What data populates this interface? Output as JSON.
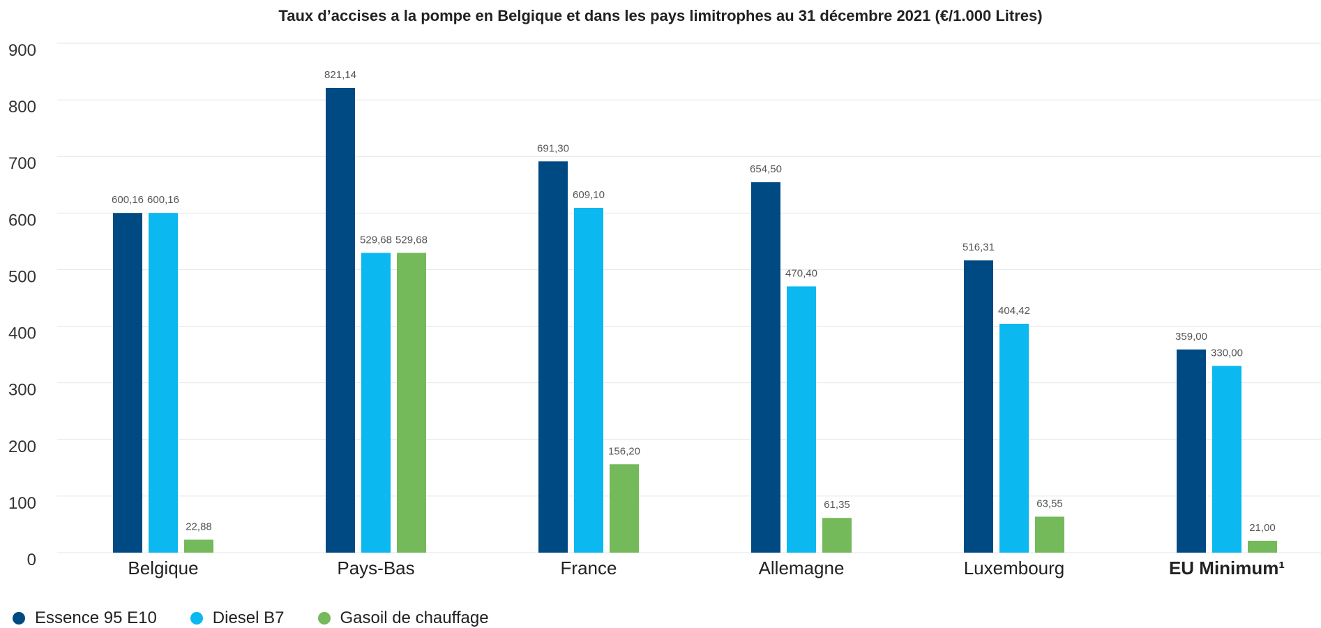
{
  "chart_data": {
    "type": "bar",
    "title": "Taux d’accises a la pompe en Belgique et dans les pays limitrophes au 31 décembre 2021 (€/1.000 Litres)",
    "xlabel": "",
    "ylabel": "",
    "ylim": [
      0,
      900
    ],
    "yticks": [
      "0",
      "100",
      "200",
      "300",
      "400",
      "500",
      "600",
      "700",
      "800",
      "900"
    ],
    "grid": true,
    "legend_position": "bottom-left",
    "categories": [
      "Belgique",
      "Pays-Bas",
      "France",
      "Allemagne",
      "Luxembourg",
      "EU Minimum¹"
    ],
    "highlight_category": "EU Minimum¹",
    "highlight_color": "#004a84",
    "series": [
      {
        "name": "Essence 95 E10",
        "color": "#004a84",
        "values": [
          600.16,
          821.14,
          691.3,
          654.5,
          516.31,
          359.0
        ],
        "labels": [
          "600,16",
          "821,14",
          "691,30",
          "654,50",
          "516,31",
          "359,00"
        ]
      },
      {
        "name": "Diesel B7",
        "color": "#0bb8ef",
        "values": [
          600.16,
          529.68,
          609.1,
          470.4,
          404.42,
          330.0
        ],
        "labels": [
          "600,16",
          "529,68",
          "609,10",
          "470,40",
          "404,42",
          "330,00"
        ]
      },
      {
        "name": "Gasoil de chauffage",
        "color": "#74b95a",
        "values": [
          22.88,
          529.68,
          156.2,
          61.35,
          63.55,
          21.0
        ],
        "labels": [
          "22,88",
          "529,68",
          "156,20",
          "61,35",
          "63,55",
          "21,00"
        ]
      }
    ]
  }
}
